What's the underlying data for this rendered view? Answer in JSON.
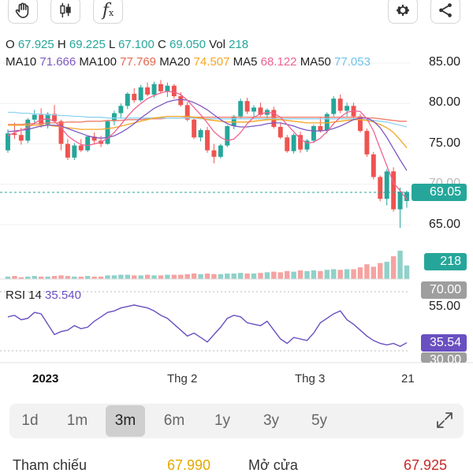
{
  "toolbar": {
    "hand_tool": "hand-icon",
    "chart_type": "candlestick-icon",
    "indicators": "function-icon",
    "settings": "gear-icon",
    "share": "share-icon",
    "fx_label": "f",
    "fx_sub": "x"
  },
  "ohlc": {
    "o_label": "O",
    "o": "67.925",
    "h_label": "H",
    "h": "69.225",
    "l_label": "L",
    "l": "67.100",
    "c_label": "C",
    "c": "69.050",
    "vol_label": "Vol",
    "vol": "218"
  },
  "ma": {
    "ma10_label": "MA10",
    "ma10": "71.666",
    "ma100_label": "MA100",
    "ma100": "77.769",
    "ma20_label": "MA20",
    "ma20": "74.507",
    "ma5_label": "MA5",
    "ma5": "68.122",
    "ma50_label": "MA50",
    "ma50": "77.053"
  },
  "colors": {
    "up": "#26a69a",
    "down": "#ef5350",
    "ma10": "#7e57c2",
    "ma100": "#f07d6a",
    "ma20": "#f5a623",
    "ma5": "#f06292",
    "ma50": "#8fd3f4",
    "rsi": "#6a4fc1"
  },
  "y_axis": {
    "labels": [
      "85.00",
      "80.00",
      "75.00",
      "70.00",
      "65.00"
    ],
    "current_price": "69.05",
    "volume_value": "218"
  },
  "rsi": {
    "label": "RSI 14",
    "value": "35.540",
    "top_tag": "70.00",
    "mid_label": "55.00",
    "current_tag": "35.54",
    "bottom_tag": "30.00"
  },
  "x_axis": {
    "year": "2023",
    "feb": "Thg 2",
    "mar": "Thg 3",
    "last": "21"
  },
  "ranges": {
    "items": [
      "1d",
      "1m",
      "3m",
      "6m",
      "1y",
      "3y",
      "5y"
    ],
    "active": "3m",
    "expand_icon": "expand-icon"
  },
  "footer": {
    "ref_label": "Tham chiếu",
    "ref_value": "67.990",
    "open_label": "Mở cửa",
    "open_value": "67.925"
  },
  "chart_data": {
    "type": "candlestick",
    "y_range": [
      63,
      87
    ],
    "candles": [
      [
        74.2,
        76.8,
        73.9,
        76.3
      ],
      [
        76.3,
        77.6,
        75.6,
        76.1
      ],
      [
        76.1,
        77.0,
        74.9,
        75.4
      ],
      [
        75.4,
        78.2,
        75.1,
        78.0
      ],
      [
        78.0,
        79.2,
        77.4,
        78.6
      ],
      [
        78.6,
        79.4,
        77.0,
        77.4
      ],
      [
        77.4,
        78.9,
        76.9,
        78.7
      ],
      [
        78.7,
        79.8,
        77.6,
        77.8
      ],
      [
        77.8,
        78.0,
        74.2,
        75.0
      ],
      [
        75.0,
        75.6,
        73.0,
        73.3
      ],
      [
        73.3,
        75.1,
        73.0,
        74.8
      ],
      [
        74.8,
        75.6,
        74.0,
        74.2
      ],
      [
        74.2,
        76.0,
        74.0,
        75.9
      ],
      [
        75.9,
        76.4,
        74.9,
        75.4
      ],
      [
        75.4,
        76.0,
        74.6,
        75.0
      ],
      [
        75.0,
        77.9,
        74.9,
        77.8
      ],
      [
        77.8,
        79.1,
        77.3,
        78.8
      ],
      [
        78.8,
        80.0,
        78.1,
        79.7
      ],
      [
        79.7,
        81.4,
        79.3,
        81.2
      ],
      [
        81.2,
        81.9,
        80.1,
        80.4
      ],
      [
        80.4,
        82.3,
        80.2,
        82.0
      ],
      [
        82.0,
        82.6,
        80.9,
        81.1
      ],
      [
        81.1,
        82.7,
        80.7,
        82.4
      ],
      [
        82.4,
        82.9,
        81.2,
        81.5
      ],
      [
        81.5,
        82.6,
        80.8,
        82.2
      ],
      [
        82.2,
        82.4,
        80.6,
        80.9
      ],
      [
        80.9,
        81.4,
        79.6,
        79.8
      ],
      [
        79.8,
        80.2,
        77.8,
        78.0
      ],
      [
        78.0,
        78.4,
        75.6,
        75.8
      ],
      [
        75.8,
        76.9,
        75.3,
        76.7
      ],
      [
        76.7,
        77.1,
        73.9,
        74.2
      ],
      [
        74.2,
        75.0,
        72.6,
        73.4
      ],
      [
        73.4,
        75.0,
        73.2,
        74.8
      ],
      [
        74.8,
        77.3,
        74.6,
        77.2
      ],
      [
        77.2,
        78.6,
        76.8,
        78.4
      ],
      [
        78.4,
        80.6,
        78.1,
        80.3
      ],
      [
        80.3,
        80.7,
        78.7,
        79.0
      ],
      [
        79.0,
        79.8,
        78.1,
        79.5
      ],
      [
        79.5,
        80.1,
        78.4,
        78.6
      ],
      [
        78.6,
        79.4,
        77.9,
        79.2
      ],
      [
        79.2,
        79.6,
        76.9,
        77.1
      ],
      [
        77.1,
        77.6,
        75.6,
        75.8
      ],
      [
        75.8,
        76.1,
        73.9,
        74.1
      ],
      [
        74.1,
        76.3,
        73.8,
        76.1
      ],
      [
        76.1,
        76.5,
        73.9,
        74.3
      ],
      [
        74.3,
        75.6,
        74.0,
        75.4
      ],
      [
        75.4,
        77.4,
        75.1,
        77.2
      ],
      [
        77.2,
        78.3,
        76.4,
        76.6
      ],
      [
        76.6,
        78.9,
        76.3,
        78.7
      ],
      [
        78.7,
        80.9,
        78.4,
        80.6
      ],
      [
        80.6,
        81.1,
        78.8,
        79.1
      ],
      [
        79.1,
        80.1,
        78.4,
        79.7
      ],
      [
        79.7,
        80.1,
        78.1,
        78.4
      ],
      [
        78.4,
        78.7,
        76.4,
        76.6
      ],
      [
        76.6,
        76.9,
        73.4,
        73.7
      ],
      [
        73.7,
        74.0,
        70.6,
        70.9
      ],
      [
        70.9,
        71.1,
        67.9,
        68.2
      ],
      [
        68.2,
        71.9,
        67.4,
        71.6
      ],
      [
        71.6,
        72.1,
        66.6,
        66.9
      ],
      [
        66.9,
        69.6,
        64.6,
        69.1
      ],
      [
        67.925,
        69.225,
        67.1,
        69.05
      ]
    ],
    "volumes": [
      4,
      5,
      3,
      4,
      5,
      4,
      4,
      5,
      6,
      5,
      4,
      4,
      5,
      4,
      4,
      6,
      6,
      7,
      7,
      6,
      6,
      7,
      6,
      6,
      7,
      7,
      7,
      8,
      9,
      8,
      9,
      8,
      8,
      9,
      9,
      10,
      9,
      9,
      10,
      11,
      12,
      11,
      13,
      12,
      14,
      13,
      14,
      13,
      15,
      16,
      15,
      16,
      16,
      19,
      24,
      20,
      26,
      28,
      37,
      46,
      22
    ],
    "ma_series": {
      "ma5": [
        76.0,
        76.4,
        76.7,
        77.0,
        77.6,
        78.0,
        78.1,
        77.8,
        77.0,
        76.0,
        75.4,
        74.9,
        74.8,
        75.0,
        75.2,
        75.7,
        76.4,
        77.4,
        78.4,
        79.3,
        80.0,
        80.6,
        81.0,
        81.3,
        81.5,
        81.4,
        81.1,
        80.4,
        79.5,
        78.6,
        77.6,
        76.5,
        75.8,
        75.4,
        75.6,
        76.4,
        77.5,
        78.3,
        78.7,
        78.9,
        78.8,
        78.3,
        77.4,
        76.5,
        75.6,
        75.1,
        75.2,
        75.7,
        76.5,
        77.5,
        78.3,
        78.9,
        79.1,
        79.0,
        78.1,
        76.6,
        74.4,
        72.3,
        70.2,
        69.2,
        68.1
      ],
      "ma10": [
        76.5,
        76.6,
        76.7,
        76.8,
        77.0,
        77.2,
        77.3,
        77.3,
        77.2,
        76.9,
        76.6,
        76.3,
        76.0,
        75.8,
        75.7,
        75.8,
        76.0,
        76.4,
        76.9,
        77.5,
        78.2,
        78.8,
        79.4,
        79.8,
        80.2,
        80.4,
        80.5,
        80.4,
        80.1,
        79.7,
        79.2,
        78.6,
        78.0,
        77.5,
        77.2,
        77.1,
        77.1,
        77.2,
        77.3,
        77.5,
        77.6,
        77.6,
        77.4,
        77.2,
        76.9,
        76.7,
        76.6,
        76.6,
        76.7,
        76.9,
        77.2,
        77.6,
        78.0,
        78.2,
        78.2,
        77.8,
        77.0,
        75.8,
        74.4,
        73.0,
        71.7
      ],
      "ma20": [
        77.3,
        77.3,
        77.3,
        77.3,
        77.3,
        77.3,
        77.3,
        77.2,
        77.1,
        77.0,
        76.9,
        76.8,
        76.8,
        76.8,
        76.8,
        76.9,
        77.0,
        77.2,
        77.4,
        77.6,
        77.8,
        78.0,
        78.2,
        78.3,
        78.4,
        78.4,
        78.4,
        78.4,
        78.3,
        78.2,
        78.0,
        77.9,
        77.8,
        77.7,
        77.7,
        77.7,
        77.7,
        77.8,
        77.9,
        78.0,
        78.0,
        78.0,
        77.9,
        77.8,
        77.7,
        77.6,
        77.6,
        77.6,
        77.6,
        77.7,
        77.8,
        77.9,
        78.0,
        78.0,
        77.9,
        77.7,
        77.4,
        77.0,
        76.4,
        75.5,
        74.5
      ],
      "ma50": [
        78.9,
        78.9,
        78.8,
        78.8,
        78.7,
        78.7,
        78.6,
        78.6,
        78.5,
        78.5,
        78.4,
        78.4,
        78.3,
        78.3,
        78.3,
        78.2,
        78.2,
        78.2,
        78.2,
        78.2,
        78.2,
        78.2,
        78.2,
        78.2,
        78.2,
        78.2,
        78.2,
        78.2,
        78.2,
        78.1,
        78.1,
        78.1,
        78.1,
        78.1,
        78.1,
        78.1,
        78.1,
        78.1,
        78.1,
        78.1,
        78.1,
        78.1,
        78.1,
        78.1,
        78.1,
        78.1,
        78.1,
        78.1,
        78.1,
        78.1,
        78.1,
        78.1,
        78.1,
        78.0,
        78.0,
        77.9,
        77.8,
        77.7,
        77.5,
        77.3,
        77.1
      ],
      "ma100": [
        77.4,
        77.4,
        77.4,
        77.5,
        77.5,
        77.5,
        77.6,
        77.6,
        77.6,
        77.7,
        77.7,
        77.7,
        77.8,
        77.8,
        77.8,
        77.9,
        77.9,
        77.9,
        78.0,
        78.0,
        78.0,
        78.1,
        78.1,
        78.1,
        78.2,
        78.2,
        78.2,
        78.3,
        78.3,
        78.3,
        78.3,
        78.3,
        78.3,
        78.3,
        78.3,
        78.3,
        78.3,
        78.3,
        78.3,
        78.3,
        78.3,
        78.3,
        78.3,
        78.3,
        78.3,
        78.3,
        78.3,
        78.3,
        78.3,
        78.3,
        78.3,
        78.3,
        78.3,
        78.3,
        78.2,
        78.2,
        78.1,
        78.0,
        77.9,
        77.8,
        77.8
      ]
    },
    "rsi_values": [
      53,
      54,
      51,
      52,
      56,
      55,
      48,
      41,
      43,
      44,
      47,
      45,
      46,
      50,
      53,
      56,
      57,
      59,
      60,
      61,
      60,
      59,
      57,
      54,
      52,
      48,
      44,
      40,
      42,
      39,
      36,
      41,
      46,
      52,
      54,
      53,
      49,
      48,
      47,
      50,
      44,
      38,
      35,
      39,
      38,
      37,
      42,
      49,
      52,
      55,
      57,
      51,
      48,
      44,
      40,
      37,
      35,
      34,
      35,
      33,
      35.5
    ]
  }
}
